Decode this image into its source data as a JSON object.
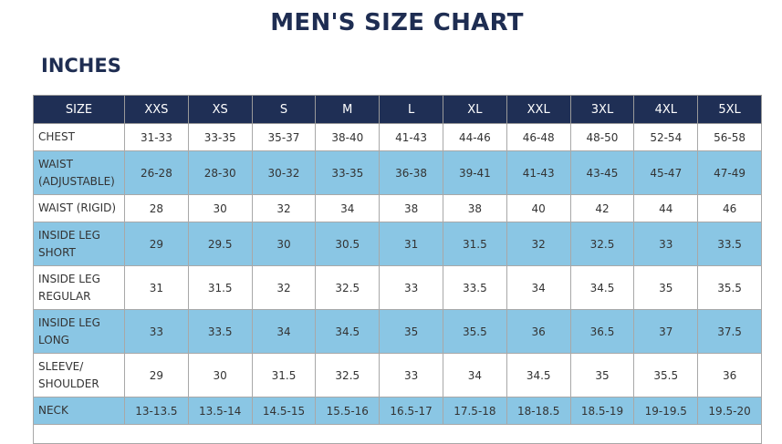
{
  "title": "MEN'S SIZE CHART",
  "unit_heading": "INCHES",
  "table": {
    "header": [
      "SIZE",
      "XXS",
      "XS",
      "S",
      "M",
      "L",
      "XL",
      "XXL",
      "3XL",
      "4XL",
      "5XL"
    ],
    "rows": [
      {
        "label": "CHEST",
        "values": [
          "31-33",
          "33-35",
          "35-37",
          "38-40",
          "41-43",
          "44-46",
          "46-48",
          "48-50",
          "52-54",
          "56-58"
        ]
      },
      {
        "label": "WAIST (ADJUSTABLE)",
        "values": [
          "26-28",
          "28-30",
          "30-32",
          "33-35",
          "36-38",
          "39-41",
          "41-43",
          "43-45",
          "45-47",
          "47-49"
        ]
      },
      {
        "label": "WAIST (RIGID)",
        "values": [
          "28",
          "30",
          "32",
          "34",
          "38",
          "38",
          "40",
          "42",
          "44",
          "46"
        ]
      },
      {
        "label": "INSIDE LEG SHORT",
        "values": [
          "29",
          "29.5",
          "30",
          "30.5",
          "31",
          "31.5",
          "32",
          "32.5",
          "33",
          "33.5"
        ]
      },
      {
        "label": "INSIDE LEG REGULAR",
        "values": [
          "31",
          "31.5",
          "32",
          "32.5",
          "33",
          "33.5",
          "34",
          "34.5",
          "35",
          "35.5"
        ]
      },
      {
        "label": "INSIDE LEG LONG",
        "values": [
          "33",
          "33.5",
          "34",
          "34.5",
          "35",
          "35.5",
          "36",
          "36.5",
          "37",
          "37.5"
        ]
      },
      {
        "label": "SLEEVE/ SHOULDER",
        "values": [
          "29",
          "30",
          "31.5",
          "32.5",
          "33",
          "34",
          "34.5",
          "35",
          "35.5",
          "36"
        ]
      },
      {
        "label": "NECK",
        "values": [
          "13-13.5",
          "13.5-14",
          "14.5-15",
          "15.5-16",
          "16.5-17",
          "17.5-18",
          "18-18.5",
          "18.5-19",
          "19-19.5",
          "19.5-20"
        ]
      }
    ]
  },
  "colors": {
    "header": "#1f2f55",
    "stripe": "#8ac6e4",
    "title": "#1e2d52"
  }
}
